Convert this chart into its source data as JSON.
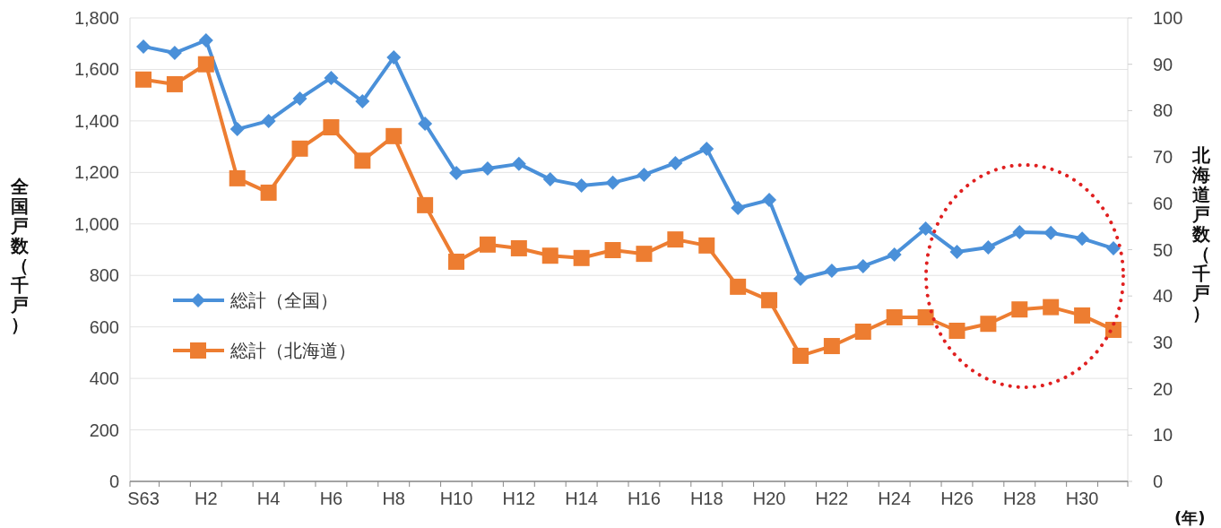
{
  "chart_data": {
    "type": "line",
    "categories": [
      "S63",
      null,
      "H2",
      null,
      "H4",
      null,
      "H6",
      null,
      "H8",
      null,
      "H10",
      null,
      "H12",
      null,
      "H14",
      null,
      "H16",
      null,
      "H18",
      null,
      "H20",
      null,
      "H22",
      null,
      "H24",
      null,
      "H26",
      null,
      "H28",
      null,
      "H30",
      null
    ],
    "series": [
      {
        "name": "総計（全国）",
        "color": "#4a90d9",
        "marker": "diamond",
        "values": [
          1689,
          1664,
          1713,
          1368,
          1400,
          1487,
          1567,
          1476,
          1647,
          1389,
          1198,
          1215,
          1233,
          1173,
          1149,
          1160,
          1191,
          1236,
          1292,
          1062,
          1093,
          787,
          818,
          836,
          881,
          982,
          891,
          909,
          968,
          965,
          943,
          905
        ]
      },
      {
        "name": "総計（北海道）",
        "color": "#ed7d31",
        "marker": "square",
        "axis": "y2",
        "values": [
          86.7,
          85.7,
          90,
          65.4,
          62.3,
          71.8,
          76.4,
          69.2,
          74.5,
          59.6,
          47.4,
          51.1,
          50.3,
          48.7,
          48.2,
          49.9,
          49.1,
          52.2,
          50.9,
          42.0,
          39.1,
          27.1,
          29.2,
          32.3,
          35.4,
          35.4,
          32.5,
          34.0,
          37.1,
          37.6,
          35.8,
          32.7
        ]
      }
    ],
    "ylim": [
      0,
      1800
    ],
    "yticks": [
      0,
      {
        "value": 200,
        "label": "200"
      },
      {
        "value": 400,
        "label": "400"
      },
      {
        "value": 600,
        "label": "600"
      },
      {
        "value": 800,
        "label": "800"
      },
      {
        "value": 1000,
        "label": "1,000"
      },
      {
        "value": 1200,
        "label": "1,200"
      },
      {
        "value": 1400,
        "label": "1,400"
      },
      {
        "value": 1600,
        "label": "1,600"
      },
      {
        "value": 1800,
        "label": "1,800"
      }
    ],
    "y2lim": [
      0,
      100
    ],
    "y2ticks": [
      0,
      10,
      20,
      30,
      40,
      50,
      60,
      70,
      80,
      90,
      100
    ],
    "ylabel": "全国戸数（千戸）",
    "y2label": "北海道戸数（千戸）",
    "xlabel": "(年)",
    "grid": "y",
    "legend": "left",
    "line_style": "solid"
  }
}
